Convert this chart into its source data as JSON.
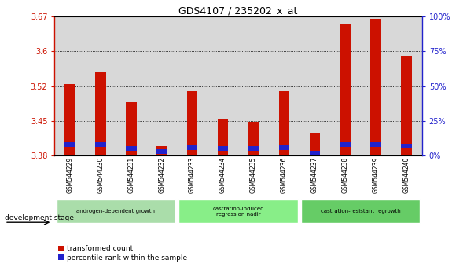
{
  "title": "GDS4107 / 235202_x_at",
  "samples": [
    "GSM544229",
    "GSM544230",
    "GSM544231",
    "GSM544232",
    "GSM544233",
    "GSM544234",
    "GSM544235",
    "GSM544236",
    "GSM544237",
    "GSM544238",
    "GSM544239",
    "GSM544240"
  ],
  "transformed_count": [
    3.53,
    3.555,
    3.49,
    3.395,
    3.515,
    3.455,
    3.448,
    3.515,
    3.425,
    3.66,
    3.67,
    3.59
  ],
  "percentile_rank": [
    8,
    8,
    5,
    3,
    6,
    5,
    5,
    6,
    2,
    8,
    8,
    7
  ],
  "y_min": 3.375,
  "y_max": 3.675,
  "y_ticks": [
    3.375,
    3.45,
    3.525,
    3.6,
    3.675
  ],
  "right_y_ticks": [
    0,
    25,
    50,
    75,
    100
  ],
  "bar_color": "#cc1100",
  "percentile_color": "#2222cc",
  "bg_color": "#d8d8d8",
  "groups": [
    {
      "label": "androgen-dependent growth",
      "start": 0,
      "end": 3,
      "color": "#aaddaa"
    },
    {
      "label": "castration-induced\nregression nadir",
      "start": 4,
      "end": 7,
      "color": "#88ee88"
    },
    {
      "label": "castration-resistant regrowth",
      "start": 8,
      "end": 11,
      "color": "#66cc66"
    }
  ],
  "stage_label": "development stage",
  "legend_red": "transformed count",
  "legend_blue": "percentile rank within the sample"
}
